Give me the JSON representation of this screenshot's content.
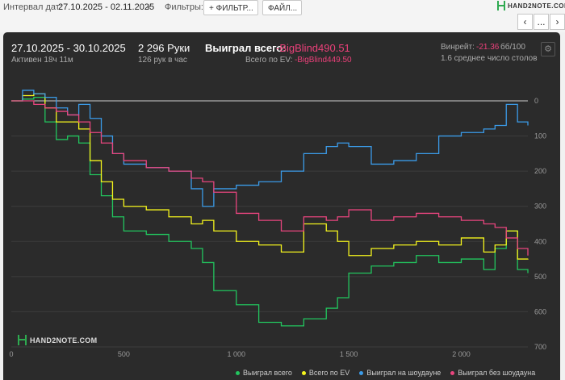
{
  "toolbar": {
    "date_label": "Интервал дат:",
    "date_value": "27.10.2025 - 02.11.2025",
    "filters_label": "Фильтры:",
    "filter_button": "ФИЛЬТР...",
    "files_button": "ФАЙЛ...",
    "logo_text": "HAND2NOTE.COM",
    "nav_prev_icon": "chevron-left-icon",
    "nav_more_label": "..."
  },
  "summary": {
    "date_range": "27.10.2025 - 30.10.2025",
    "active": "Активен 18ч 11м",
    "hands": "2 296 Руки",
    "hands_per_hour": "126 рук в час",
    "won_label": "Выиграл всего:",
    "won_value": "-BigBlind490.51",
    "ev_label": "Всего по EV:",
    "ev_value": "-BigBlind449.50",
    "winrate_label": "Винрейт:",
    "winrate_value": "-21.36",
    "winrate_unit": "бб/100",
    "avg_tables": "1.6 среднее число столов"
  },
  "watermark": "HAND2NOTE.COM",
  "colors": {
    "total": "#22c55e",
    "ev": "#f5f51d",
    "showdown": "#3b9be8",
    "non_showdown": "#e8457e",
    "accent_negative": "#ec407a"
  },
  "chart_data": {
    "type": "line",
    "title": "",
    "xlabel": "",
    "ylabel": "",
    "xlim": [
      0,
      2296
    ],
    "ylim": [
      0,
      700
    ],
    "y_inverted": true,
    "x_ticks": [
      "0",
      "500",
      "1 000",
      "1 500",
      "2 000"
    ],
    "x_tick_values": [
      0,
      500,
      1000,
      1500,
      2000
    ],
    "y_ticks": [
      "0",
      "100",
      "200",
      "300",
      "400",
      "500",
      "600",
      "700"
    ],
    "y_tick_values": [
      0,
      100,
      200,
      300,
      400,
      500,
      600,
      700
    ],
    "grid": true,
    "legend_position": "bottom-right",
    "series": [
      {
        "name": "Выиграл всего",
        "color": "#22c55e",
        "x": [
          0,
          50,
          100,
          150,
          200,
          250,
          300,
          350,
          400,
          450,
          500,
          600,
          700,
          800,
          850,
          900,
          1000,
          1100,
          1200,
          1300,
          1400,
          1450,
          1500,
          1600,
          1700,
          1800,
          1900,
          2000,
          2100,
          2150,
          2200,
          2250,
          2296
        ],
        "y": [
          0,
          -5,
          -10,
          60,
          110,
          100,
          120,
          210,
          270,
          330,
          370,
          380,
          400,
          420,
          460,
          540,
          580,
          630,
          640,
          620,
          590,
          560,
          490,
          470,
          460,
          440,
          460,
          450,
          480,
          420,
          370,
          480,
          490
        ]
      },
      {
        "name": "Всего по EV",
        "color": "#f5f51d",
        "x": [
          0,
          50,
          100,
          150,
          200,
          250,
          300,
          350,
          400,
          450,
          500,
          600,
          700,
          800,
          850,
          900,
          1000,
          1100,
          1200,
          1300,
          1400,
          1450,
          1500,
          1600,
          1700,
          1800,
          1900,
          2000,
          2100,
          2150,
          2200,
          2250,
          2296
        ],
        "y": [
          0,
          -15,
          -20,
          20,
          60,
          60,
          80,
          170,
          230,
          280,
          300,
          310,
          330,
          350,
          340,
          370,
          400,
          410,
          430,
          350,
          370,
          400,
          440,
          420,
          410,
          400,
          410,
          390,
          430,
          410,
          370,
          450,
          449
        ]
      },
      {
        "name": "Выиграл на шоудауне",
        "color": "#3b9be8",
        "x": [
          0,
          50,
          100,
          150,
          200,
          250,
          300,
          350,
          400,
          450,
          500,
          600,
          700,
          800,
          850,
          900,
          1000,
          1100,
          1200,
          1300,
          1400,
          1450,
          1500,
          1600,
          1700,
          1800,
          1900,
          2000,
          2100,
          2150,
          2200,
          2250,
          2296
        ],
        "y": [
          0,
          -30,
          -20,
          -10,
          20,
          40,
          10,
          50,
          100,
          150,
          180,
          190,
          200,
          250,
          300,
          250,
          240,
          230,
          200,
          150,
          130,
          120,
          130,
          180,
          170,
          150,
          100,
          90,
          80,
          70,
          10,
          60,
          70
        ]
      },
      {
        "name": "Выиграл без шоудауна",
        "color": "#e8457e",
        "x": [
          0,
          50,
          100,
          150,
          200,
          250,
          300,
          350,
          400,
          450,
          500,
          600,
          700,
          800,
          850,
          900,
          1000,
          1100,
          1200,
          1300,
          1400,
          1450,
          1500,
          1600,
          1700,
          1800,
          1900,
          2000,
          2100,
          2150,
          2200,
          2250,
          2296
        ],
        "y": [
          0,
          0,
          10,
          20,
          30,
          40,
          60,
          90,
          120,
          150,
          170,
          190,
          200,
          220,
          230,
          260,
          320,
          340,
          370,
          330,
          340,
          330,
          310,
          340,
          330,
          320,
          330,
          340,
          350,
          360,
          390,
          420,
          440
        ]
      }
    ]
  }
}
